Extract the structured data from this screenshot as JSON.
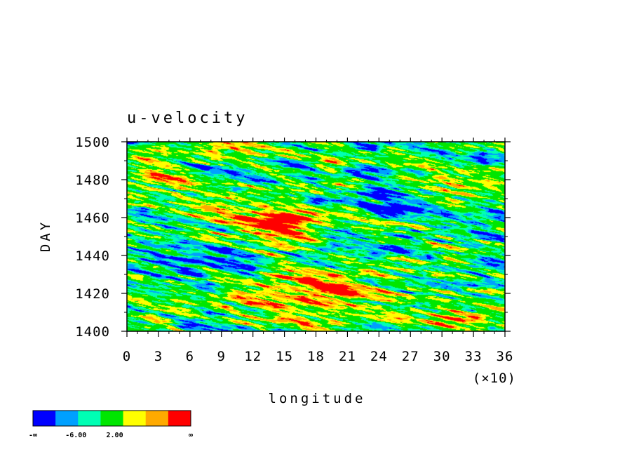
{
  "chart_data": {
    "type": "heatmap",
    "title": "u-velocity",
    "xlabel": "longitude",
    "ylabel": "DAY",
    "x_multiplier_label": "(×10)",
    "xlim": [
      0,
      36
    ],
    "ylim": [
      1400,
      1500
    ],
    "x_ticks": [
      "0",
      "3",
      "6",
      "9",
      "12",
      "15",
      "18",
      "21",
      "24",
      "27",
      "30",
      "33",
      "36"
    ],
    "y_ticks": [
      "1400",
      "1420",
      "1440",
      "1460",
      "1480",
      "1500"
    ],
    "colorbar": {
      "colors": [
        "#0000ff",
        "#00a0ff",
        "#00ffb4",
        "#00e600",
        "#ffff00",
        "#ffaa00",
        "#ff0000"
      ],
      "labels": [
        "-∞",
        "-6.00",
        "2.00",
        "∞"
      ]
    },
    "field_note": "westward-propagating bands; strong positive (red) patches near longitude 120-180 and 300-360"
  }
}
